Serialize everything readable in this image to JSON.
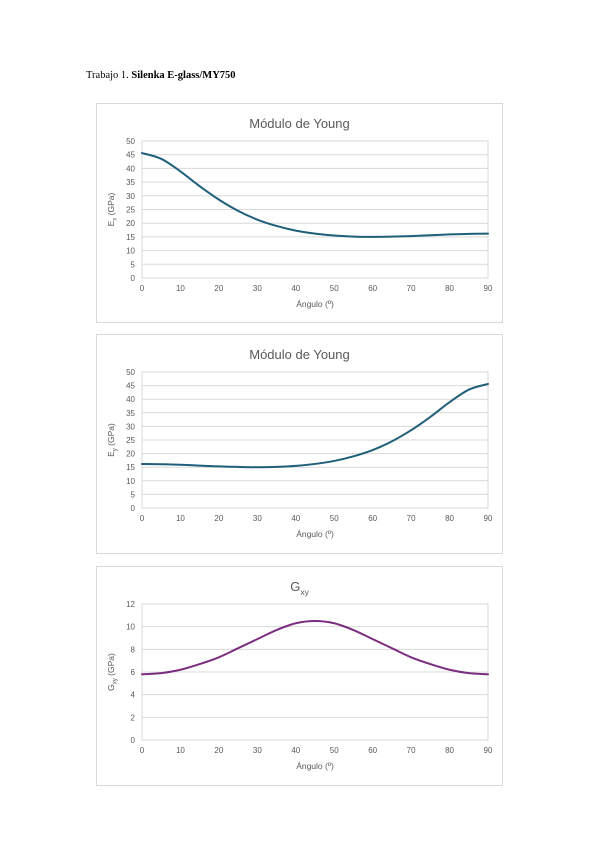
{
  "heading": {
    "prefix": "Trabajo 1. ",
    "bold": "Silenka E-glass/MY750"
  },
  "chart_data": [
    {
      "type": "line",
      "title": "Módulo de Young",
      "title_main": "Módulo de Young",
      "title_sub": "",
      "xlabel": "Ángulo (º)",
      "ylabel_main": "E",
      "ylabel_sub": "x",
      "ylabel_tail": " (GPa)",
      "xlim": [
        0,
        90
      ],
      "ylim": [
        0,
        50
      ],
      "xticks": [
        0,
        10,
        20,
        30,
        40,
        50,
        60,
        70,
        80,
        90
      ],
      "yticks": [
        0,
        5,
        10,
        15,
        20,
        25,
        30,
        35,
        40,
        45,
        50
      ],
      "grid": "horizontal",
      "color": "#1f5f7a",
      "series": [
        {
          "x": [
            0,
            5,
            10,
            15,
            20,
            25,
            30,
            35,
            40,
            45,
            50,
            55,
            60,
            65,
            70,
            75,
            80,
            85,
            90
          ],
          "y": [
            45.6,
            43.5,
            38.9,
            33.5,
            28.6,
            24.5,
            21.3,
            19.0,
            17.3,
            16.2,
            15.5,
            15.1,
            15.0,
            15.1,
            15.3,
            15.6,
            15.9,
            16.1,
            16.2
          ]
        }
      ]
    },
    {
      "type": "line",
      "title": "Módulo de Young",
      "title_main": "Módulo de Young",
      "title_sub": "",
      "xlabel": "Ángulo (º)",
      "ylabel_main": "E",
      "ylabel_sub": "y",
      "ylabel_tail": " (GPa)",
      "xlim": [
        0,
        90
      ],
      "ylim": [
        0,
        50
      ],
      "xticks": [
        0,
        10,
        20,
        30,
        40,
        50,
        60,
        70,
        80,
        90
      ],
      "yticks": [
        0,
        5,
        10,
        15,
        20,
        25,
        30,
        35,
        40,
        45,
        50
      ],
      "grid": "horizontal",
      "color": "#1f5f7a",
      "series": [
        {
          "x": [
            0,
            5,
            10,
            15,
            20,
            25,
            30,
            35,
            40,
            45,
            50,
            55,
            60,
            65,
            70,
            75,
            80,
            85,
            90
          ],
          "y": [
            16.2,
            16.1,
            15.9,
            15.6,
            15.3,
            15.1,
            15.0,
            15.1,
            15.5,
            16.2,
            17.3,
            19.0,
            21.3,
            24.5,
            28.6,
            33.5,
            38.9,
            43.5,
            45.6
          ]
        }
      ]
    },
    {
      "type": "line",
      "title": "Gxy",
      "title_main": "G",
      "title_sub": "xy",
      "xlabel": "Ángulo (º)",
      "ylabel_main": "G",
      "ylabel_sub": "xy",
      "ylabel_tail": " (GPa)",
      "xlim": [
        0,
        90
      ],
      "ylim": [
        0,
        12
      ],
      "xticks": [
        0,
        10,
        20,
        30,
        40,
        50,
        60,
        70,
        80,
        90
      ],
      "yticks": [
        0,
        2,
        4,
        6,
        8,
        10,
        12
      ],
      "grid": "horizontal",
      "color": "#7b2d7f",
      "series": [
        {
          "x": [
            0,
            5,
            10,
            15,
            20,
            25,
            30,
            35,
            40,
            45,
            50,
            55,
            60,
            65,
            70,
            75,
            80,
            85,
            90
          ],
          "y": [
            5.8,
            5.9,
            6.2,
            6.7,
            7.3,
            8.1,
            8.9,
            9.7,
            10.3,
            10.5,
            10.3,
            9.7,
            8.9,
            8.1,
            7.3,
            6.7,
            6.2,
            5.9,
            5.8
          ]
        }
      ]
    }
  ]
}
